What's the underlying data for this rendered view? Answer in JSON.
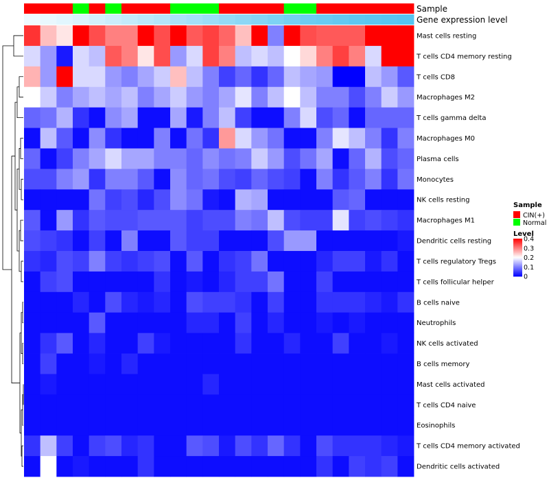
{
  "chart_data": {
    "type": "heatmap",
    "title": "",
    "rows": [
      "Mast cells resting",
      "T cells CD4 memory resting",
      "T cells CD8",
      "Macrophages M2",
      "T cells gamma delta",
      "Macrophages M0",
      "Plasma cells",
      "Monocytes",
      "NK cells resting",
      "Macrophages M1",
      "Dendritic cells resting",
      "T cells regulatory  Tregs",
      "T cells follicular helper",
      "B cells naive",
      "Neutrophils",
      "NK cells activated",
      "B cells memory",
      "Mast cells activated",
      "T cells CD4 naive",
      "Eosinophils",
      "T cells CD4 memory activated",
      "Dendritic cells activated"
    ],
    "samples": [
      "CIN(+)",
      "CIN(+)",
      "CIN(+)",
      "Normal",
      "CIN(+)",
      "Normal",
      "CIN(+)",
      "CIN(+)",
      "CIN(+)",
      "Normal",
      "Normal",
      "Normal",
      "CIN(+)",
      "CIN(+)",
      "CIN(+)",
      "CIN(+)",
      "Normal",
      "Normal",
      "CIN(+)",
      "CIN(+)",
      "CIN(+)",
      "CIN(+)",
      "CIN(+)",
      "CIN(+)"
    ],
    "expression_level": [
      0.02,
      0.06,
      0.1,
      0.15,
      0.2,
      0.25,
      0.3,
      0.35,
      0.4,
      0.45,
      0.5,
      0.55,
      0.6,
      0.65,
      0.7,
      0.75,
      0.8,
      0.85,
      0.88,
      0.91,
      0.94,
      0.96,
      0.98,
      1.0
    ],
    "values": [
      [
        0.36,
        0.25,
        0.22,
        0.4,
        0.34,
        0.3,
        0.3,
        0.4,
        0.34,
        0.4,
        0.33,
        0.35,
        0.32,
        0.25,
        0.4,
        0.1,
        0.4,
        0.34,
        0.33,
        0.33,
        0.33,
        0.4,
        0.4,
        0.4
      ],
      [
        0.17,
        0.12,
        0.02,
        0.17,
        0.15,
        0.33,
        0.3,
        0.22,
        0.34,
        0.12,
        0.17,
        0.35,
        0.3,
        0.15,
        0.17,
        0.15,
        0.2,
        0.23,
        0.3,
        0.35,
        0.3,
        0.17,
        0.4,
        0.4
      ],
      [
        0.26,
        0.12,
        0.4,
        0.17,
        0.17,
        0.12,
        0.1,
        0.13,
        0.16,
        0.25,
        0.15,
        0.1,
        0.05,
        0.08,
        0.04,
        0.08,
        0.15,
        0.13,
        0.12,
        0.0,
        0.0,
        0.15,
        0.12,
        0.07
      ],
      [
        0.2,
        0.16,
        0.1,
        0.13,
        0.15,
        0.13,
        0.15,
        0.1,
        0.13,
        0.16,
        0.12,
        0.1,
        0.13,
        0.18,
        0.1,
        0.15,
        0.2,
        0.15,
        0.1,
        0.1,
        0.06,
        0.1,
        0.16,
        0.12
      ],
      [
        0.08,
        0.09,
        0.14,
        0.04,
        0.01,
        0.11,
        0.13,
        0.01,
        0.01,
        0.13,
        0.02,
        0.1,
        0.15,
        0.05,
        0.01,
        0.01,
        0.1,
        0.17,
        0.06,
        0.08,
        0.01,
        0.08,
        0.08,
        0.08
      ],
      [
        0.01,
        0.15,
        0.07,
        0.01,
        0.11,
        0.04,
        0.01,
        0.01,
        0.1,
        0.01,
        0.09,
        0.04,
        0.28,
        0.17,
        0.12,
        0.09,
        0.01,
        0.01,
        0.1,
        0.18,
        0.15,
        0.1,
        0.04,
        0.1
      ],
      [
        0.08,
        0.01,
        0.05,
        0.1,
        0.13,
        0.17,
        0.13,
        0.13,
        0.1,
        0.1,
        0.08,
        0.11,
        0.09,
        0.1,
        0.16,
        0.12,
        0.06,
        0.09,
        0.13,
        0.01,
        0.08,
        0.14,
        0.06,
        0.08
      ],
      [
        0.06,
        0.06,
        0.1,
        0.12,
        0.04,
        0.1,
        0.1,
        0.07,
        0.01,
        0.11,
        0.08,
        0.09,
        0.06,
        0.05,
        0.08,
        0.06,
        0.05,
        0.01,
        0.1,
        0.04,
        0.07,
        0.1,
        0.04,
        0.09
      ],
      [
        0.01,
        0.01,
        0.01,
        0.01,
        0.09,
        0.05,
        0.06,
        0.03,
        0.06,
        0.11,
        0.09,
        0.02,
        0.01,
        0.14,
        0.13,
        0.01,
        0.01,
        0.01,
        0.01,
        0.07,
        0.08,
        0.01,
        0.01,
        0.01
      ],
      [
        0.07,
        0.01,
        0.12,
        0.04,
        0.07,
        0.06,
        0.06,
        0.07,
        0.07,
        0.07,
        0.05,
        0.06,
        0.06,
        0.1,
        0.09,
        0.15,
        0.06,
        0.05,
        0.05,
        0.18,
        0.05,
        0.06,
        0.05,
        0.04
      ],
      [
        0.06,
        0.05,
        0.04,
        0.01,
        0.05,
        0.01,
        0.1,
        0.01,
        0.01,
        0.07,
        0.05,
        0.05,
        0.01,
        0.01,
        0.01,
        0.06,
        0.12,
        0.12,
        0.01,
        0.01,
        0.01,
        0.01,
        0.01,
        0.02
      ],
      [
        0.04,
        0.03,
        0.06,
        0.05,
        0.1,
        0.05,
        0.04,
        0.05,
        0.06,
        0.01,
        0.07,
        0.01,
        0.04,
        0.05,
        0.09,
        0.01,
        0.01,
        0.01,
        0.03,
        0.05,
        0.05,
        0.02,
        0.04,
        0.01
      ],
      [
        0.01,
        0.05,
        0.06,
        0.01,
        0.01,
        0.01,
        0.01,
        0.01,
        0.04,
        0.01,
        0.02,
        0.01,
        0.03,
        0.05,
        0.05,
        0.09,
        0.01,
        0.01,
        0.05,
        0.01,
        0.01,
        0.01,
        0.01,
        0.01
      ],
      [
        0.01,
        0.01,
        0.01,
        0.03,
        0.01,
        0.06,
        0.03,
        0.02,
        0.03,
        0.01,
        0.06,
        0.05,
        0.05,
        0.04,
        0.01,
        0.05,
        0.01,
        0.01,
        0.04,
        0.04,
        0.04,
        0.03,
        0.02,
        0.04
      ],
      [
        0.01,
        0.01,
        0.01,
        0.01,
        0.07,
        0.01,
        0.01,
        0.01,
        0.01,
        0.01,
        0.03,
        0.03,
        0.01,
        0.05,
        0.01,
        0.03,
        0.01,
        0.01,
        0.02,
        0.01,
        0.02,
        0.01,
        0.01,
        0.01
      ],
      [
        0.01,
        0.04,
        0.07,
        0.01,
        0.03,
        0.01,
        0.01,
        0.05,
        0.02,
        0.01,
        0.01,
        0.01,
        0.01,
        0.04,
        0.01,
        0.01,
        0.03,
        0.01,
        0.01,
        0.05,
        0.01,
        0.01,
        0.02,
        0.01
      ],
      [
        0.01,
        0.05,
        0.01,
        0.01,
        0.02,
        0.01,
        0.03,
        0.01,
        0.01,
        0.01,
        0.01,
        0.01,
        0.01,
        0.01,
        0.01,
        0.01,
        0.01,
        0.01,
        0.01,
        0.01,
        0.01,
        0.01,
        0.01,
        0.01
      ],
      [
        0.01,
        0.02,
        0.01,
        0.01,
        0.01,
        0.01,
        0.01,
        0.01,
        0.01,
        0.01,
        0.01,
        0.03,
        0.01,
        0.01,
        0.01,
        0.01,
        0.01,
        0.01,
        0.01,
        0.01,
        0.01,
        0.01,
        0.01,
        0.01
      ],
      [
        0.01,
        0.01,
        0.01,
        0.01,
        0.01,
        0.01,
        0.01,
        0.01,
        0.01,
        0.01,
        0.01,
        0.01,
        0.01,
        0.01,
        0.01,
        0.01,
        0.01,
        0.01,
        0.01,
        0.01,
        0.01,
        0.01,
        0.01,
        0.01
      ],
      [
        0.01,
        0.01,
        0.01,
        0.01,
        0.01,
        0.01,
        0.01,
        0.01,
        0.01,
        0.01,
        0.01,
        0.01,
        0.01,
        0.01,
        0.01,
        0.01,
        0.01,
        0.01,
        0.01,
        0.01,
        0.01,
        0.01,
        0.01,
        0.01
      ],
      [
        0.04,
        0.15,
        0.05,
        0.01,
        0.05,
        0.06,
        0.03,
        0.04,
        0.01,
        0.01,
        0.07,
        0.06,
        0.02,
        0.06,
        0.04,
        0.08,
        0.04,
        0.01,
        0.06,
        0.04,
        0.04,
        0.04,
        0.03,
        0.02
      ],
      [
        0.01,
        0.2,
        0.01,
        0.02,
        0.01,
        0.01,
        0.01,
        0.04,
        0.01,
        0.01,
        0.01,
        0.01,
        0.01,
        0.01,
        0.01,
        0.01,
        0.01,
        0.01,
        0.04,
        0.01,
        0.05,
        0.04,
        0.05,
        0.01
      ]
    ],
    "annotation_labels": {
      "sample": "Sample",
      "expression": "Gene expression level"
    },
    "legend": {
      "sample_title": "Sample",
      "sample_entries": [
        {
          "label": "CIN(+)",
          "color": "#ff0000"
        },
        {
          "label": "Normal",
          "color": "#00ff00"
        }
      ],
      "level_title": "Level",
      "level_ticks": [
        {
          "value": 0.4,
          "label": "0.4"
        },
        {
          "value": 0.3,
          "label": "0.3"
        },
        {
          "value": 0.2,
          "label": "0.2"
        },
        {
          "value": 0.1,
          "label": "0.1"
        },
        {
          "value": 0.0,
          "label": "0"
        }
      ],
      "value_range": [
        0,
        0.4
      ]
    },
    "colors": {
      "low": "#0000ff",
      "mid": "#ffffff",
      "high": "#ff0000",
      "expression_low": "#f2fbff",
      "expression_high": "#56c4f0"
    }
  }
}
